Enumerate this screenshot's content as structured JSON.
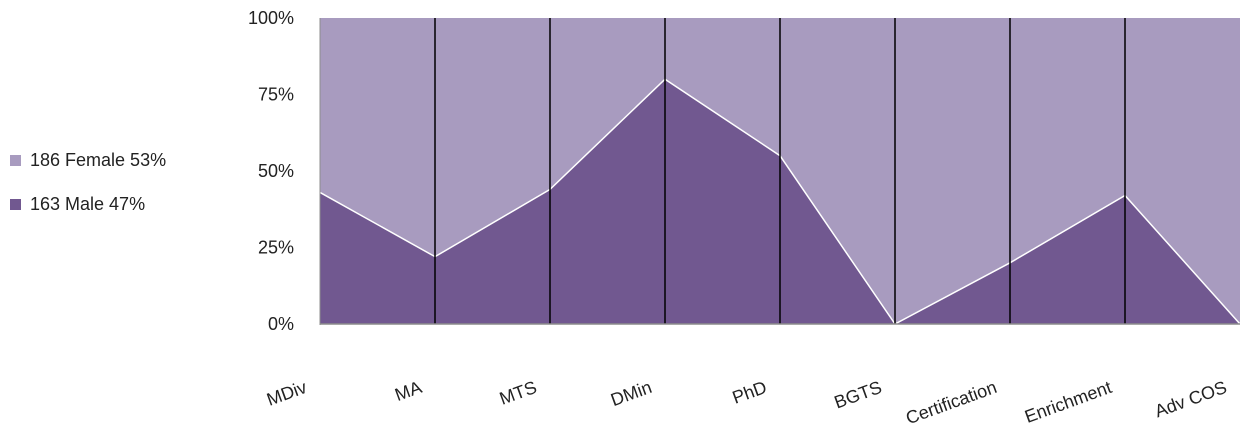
{
  "chart_data": {
    "type": "area",
    "stacked_percent": true,
    "categories": [
      "MDiv",
      "MA",
      "MTS",
      "DMin",
      "PhD",
      "BGTS",
      "Certification",
      "Enrichment",
      "Adv COS"
    ],
    "series": [
      {
        "name": "163 Male 47%",
        "values": [
          43,
          22,
          44,
          80,
          55,
          0,
          20,
          42,
          0
        ],
        "color": "#715890"
      },
      {
        "name": "186 Female 53%",
        "values": [
          57,
          78,
          56,
          20,
          45,
          100,
          80,
          58,
          100
        ],
        "color": "#a89bbf"
      }
    ],
    "legend": [
      {
        "label": "186 Female 53%",
        "color": "#a89bbf"
      },
      {
        "label": "163 Male 47%",
        "color": "#715890"
      }
    ],
    "y_ticks": [
      "0%",
      "25%",
      "50%",
      "75%",
      "100%"
    ],
    "ylim": [
      0,
      100
    ],
    "legend_position": "left",
    "grid": "vertical lines at categories"
  }
}
